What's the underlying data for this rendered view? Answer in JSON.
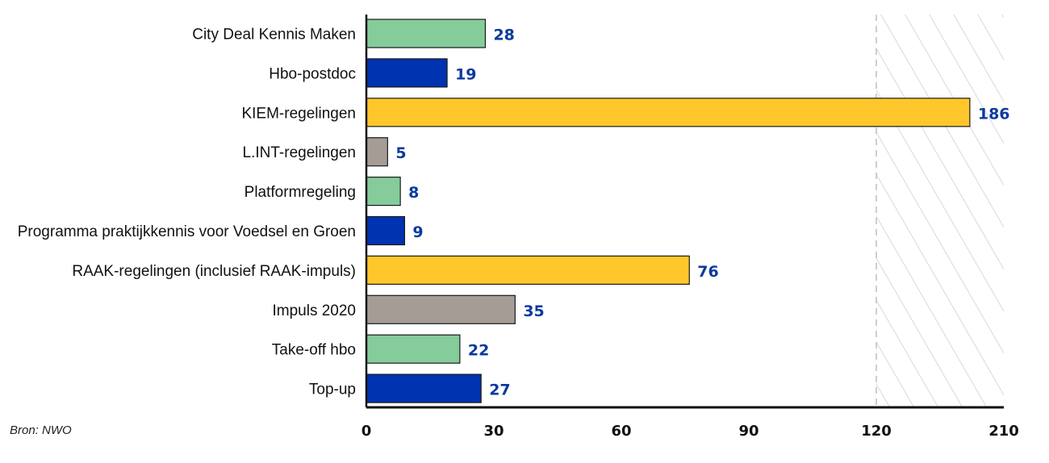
{
  "chart_data": {
    "type": "bar",
    "orientation": "horizontal",
    "categories": [
      "City Deal Kennis Maken",
      "Hbo-postdoc",
      "KIEM-regelingen",
      "L.INT-regelingen",
      "Platformregeling",
      "Programma praktijkkennis voor Voedsel en Groen",
      "RAAK-regelingen (inclusief RAAK-impuls)",
      "Impuls 2020",
      "Take-off hbo",
      "Top-up"
    ],
    "values": [
      28,
      19,
      186,
      5,
      8,
      9,
      76,
      35,
      22,
      27
    ],
    "bar_colors": [
      "#85cc9a",
      "#0033b0",
      "#ffc72c",
      "#a59c96",
      "#85cc9a",
      "#0033b0",
      "#ffc72c",
      "#a59c96",
      "#85cc9a",
      "#0033b0"
    ],
    "value_label_color": "#0a3a9e",
    "xlim": [
      0,
      210
    ],
    "x_axis_scale": "piecewise: linear 0-120, compressed 120-210",
    "x_ticks": [
      0,
      30,
      60,
      90,
      120,
      210
    ],
    "axis_break_at": 120,
    "axis_break_style": "dashed line with diagonal hatching beyond break",
    "title": "",
    "xlabel": "",
    "ylabel": "",
    "grid": false,
    "legend": "none"
  },
  "source": "Bron: NWO"
}
